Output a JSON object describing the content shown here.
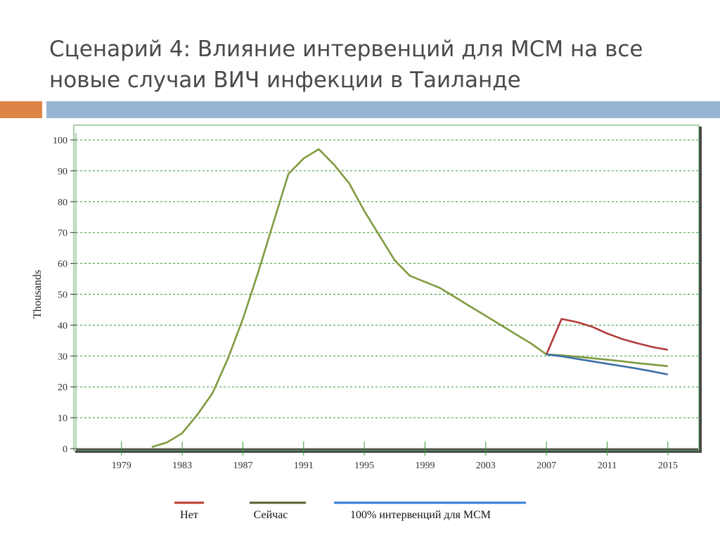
{
  "slide": {
    "title_line1": "Сценарий 4: Влияние интервенций для МСМ на все",
    "title_line2": "новые случаи ВИЧ инфекции в Таиланде"
  },
  "chart_data": {
    "type": "line",
    "ylabel": "Thousands",
    "xlabel": "",
    "xlim": [
      1976,
      2017
    ],
    "ylim": [
      0,
      100
    ],
    "yticks": [
      0,
      10,
      20,
      30,
      40,
      50,
      60,
      70,
      80,
      90,
      100
    ],
    "xticks": [
      1979,
      1983,
      1987,
      1991,
      1995,
      1999,
      2003,
      2007,
      2011,
      2015
    ],
    "grid": true,
    "legend_position": "bottom",
    "series": [
      {
        "name": "Сейчас",
        "color": "#7f9b40",
        "legend_color": "#55602e",
        "x": [
          1981,
          1982,
          1983,
          1984,
          1985,
          1986,
          1987,
          1988,
          1989,
          1990,
          1991,
          1992,
          1993,
          1994,
          1995,
          1996,
          1997,
          1998,
          1999,
          2000,
          2001,
          2002,
          2003,
          2004,
          2005,
          2006,
          2007,
          2008,
          2009,
          2010,
          2011,
          2012,
          2013,
          2014,
          2015
        ],
        "y": [
          0.5,
          2,
          5,
          11,
          18,
          29,
          42,
          57,
          73,
          89,
          94,
          97,
          92,
          86,
          77,
          69,
          61,
          56,
          54,
          52,
          49,
          46,
          43,
          40,
          37,
          34,
          30.5,
          30.2,
          29.8,
          29.3,
          28.8,
          28.3,
          27.7,
          27.2,
          26.7
        ]
      },
      {
        "name": "Нет",
        "color": "#b23a3a",
        "legend_color": "#c0392b",
        "x": [
          2007,
          2008,
          2009,
          2010,
          2011,
          2012,
          2013,
          2014,
          2015
        ],
        "y": [
          30.5,
          42,
          41,
          39.5,
          37.3,
          35.5,
          34.1,
          32.9,
          32
        ]
      },
      {
        "name": "100% интервенций для МСМ",
        "color": "#3d6fa8",
        "legend_color": "#2f7bd9",
        "x": [
          2007,
          2008,
          2009,
          2010,
          2011,
          2012,
          2013,
          2014,
          2015
        ],
        "y": [
          30.5,
          29.9,
          29.1,
          28.3,
          27.5,
          26.7,
          25.9,
          25,
          24
        ]
      }
    ]
  }
}
